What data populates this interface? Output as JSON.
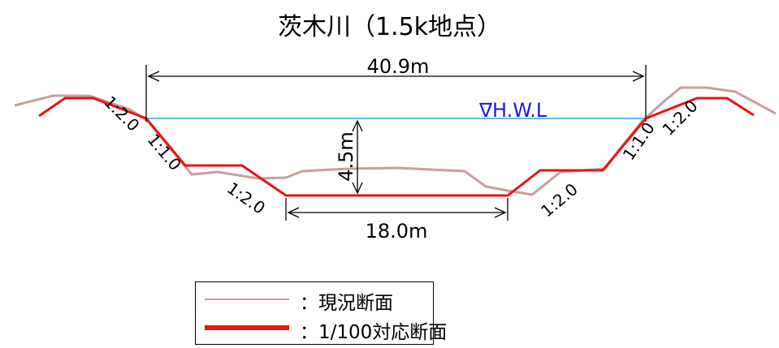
{
  "title": "茨木川（1.5k地点）",
  "dimensions": {
    "top_width": "40.9m",
    "bottom_width": "18.0m",
    "depth": "4.5m"
  },
  "hwl_label": "∇H.W.L",
  "slopes": {
    "left_upper": "1:2.0",
    "left_mid": "1:1.0",
    "left_lower": "1:2.0",
    "right_lower": "1:2.0",
    "right_mid": "1:1.0",
    "right_upper": "1:2.0"
  },
  "legend": {
    "existing": "：現況断面",
    "plan": "：1/100対応断面"
  },
  "colors": {
    "existing_line": "#c8a09a",
    "plan_line": "#ee1111",
    "hwl_line": "#2ea3e6",
    "hwl_text": "#1a1ae6"
  }
}
